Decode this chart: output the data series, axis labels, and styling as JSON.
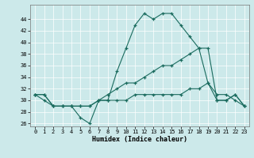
{
  "title": "",
  "xlabel": "Humidex (Indice chaleur)",
  "xlim": [
    -0.5,
    23.5
  ],
  "ylim": [
    25.5,
    46.5
  ],
  "yticks": [
    26,
    28,
    30,
    32,
    34,
    36,
    38,
    40,
    42,
    44
  ],
  "xticks": [
    0,
    1,
    2,
    3,
    4,
    5,
    6,
    7,
    8,
    9,
    10,
    11,
    12,
    13,
    14,
    15,
    16,
    17,
    18,
    19,
    20,
    21,
    22,
    23
  ],
  "bg_color": "#cce9ea",
  "line_color": "#1a6b5e",
  "grid_color": "#ffffff",
  "lines": [
    {
      "x": [
        0,
        1,
        2,
        3,
        4,
        5,
        6,
        7,
        8,
        9,
        10,
        11,
        12,
        13,
        14,
        15,
        16,
        17,
        18,
        19,
        20,
        21,
        22,
        23
      ],
      "y": [
        31,
        31,
        29,
        29,
        29,
        27,
        26,
        30,
        30,
        35,
        39,
        43,
        45,
        44,
        45,
        45,
        43,
        41,
        39,
        33,
        31,
        31,
        30,
        29
      ]
    },
    {
      "x": [
        0,
        1,
        2,
        3,
        4,
        5,
        6,
        7,
        8,
        9,
        10,
        11,
        12,
        13,
        14,
        15,
        16,
        17,
        18,
        19,
        20,
        21,
        22,
        23
      ],
      "y": [
        31,
        31,
        29,
        29,
        29,
        29,
        29,
        30,
        31,
        32,
        33,
        33,
        34,
        35,
        36,
        36,
        37,
        38,
        39,
        39,
        30,
        30,
        31,
        29
      ]
    },
    {
      "x": [
        0,
        1,
        2,
        3,
        4,
        5,
        6,
        7,
        8,
        9,
        10,
        11,
        12,
        13,
        14,
        15,
        16,
        17,
        18,
        19,
        20,
        21,
        22,
        23
      ],
      "y": [
        31,
        30,
        29,
        29,
        29,
        29,
        29,
        30,
        30,
        30,
        30,
        31,
        31,
        31,
        31,
        31,
        31,
        32,
        32,
        33,
        30,
        30,
        31,
        29
      ]
    }
  ]
}
